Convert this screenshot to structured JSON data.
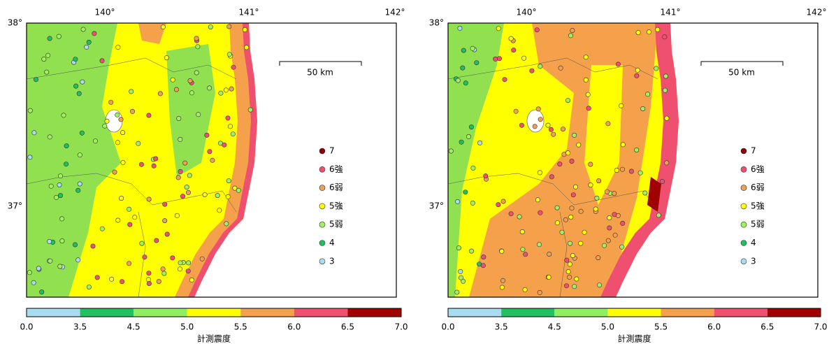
{
  "panels": [
    {
      "lon_labels": [
        "140°",
        "141°",
        "142°"
      ],
      "lat_labels": [
        "38°",
        "37°"
      ],
      "scale_label": "50 km",
      "legend": [
        {
          "label": "7",
          "color": "#8b0000"
        },
        {
          "label": "6強",
          "color": "#f0506e"
        },
        {
          "label": "6弱",
          "color": "#f0a050"
        },
        {
          "label": "5強",
          "color": "#ffff00"
        },
        {
          "label": "5弱",
          "color": "#a0f060"
        },
        {
          "label": "4",
          "color": "#20c060"
        },
        {
          "label": "3",
          "color": "#a8dcf0"
        }
      ],
      "colorbar": {
        "colors": [
          "#a8dcf0",
          "#22c060",
          "#90ee60",
          "#ffff00",
          "#f5a04a",
          "#f05070",
          "#a00000"
        ],
        "ticks": [
          "0.0",
          "3.5",
          "4.5",
          "5.0",
          "5.5",
          "6.0",
          "6.5",
          "7.0"
        ],
        "label": "計測震度"
      }
    },
    {
      "lon_labels": [
        "140°",
        "141°",
        "142°"
      ],
      "lat_labels": [
        "38°",
        "37°"
      ],
      "scale_label": "50 km",
      "legend": [
        {
          "label": "7",
          "color": "#8b0000"
        },
        {
          "label": "6強",
          "color": "#f0506e"
        },
        {
          "label": "6弱",
          "color": "#f0a050"
        },
        {
          "label": "5強",
          "color": "#ffff00"
        },
        {
          "label": "5弱",
          "color": "#a0f060"
        },
        {
          "label": "4",
          "color": "#20c060"
        },
        {
          "label": "3",
          "color": "#a8dcf0"
        }
      ],
      "colorbar": {
        "colors": [
          "#a8dcf0",
          "#22c060",
          "#90ee60",
          "#ffff00",
          "#f5a04a",
          "#f05070",
          "#a00000"
        ],
        "ticks": [
          "0.0",
          "3.5",
          "4.5",
          "5.0",
          "5.5",
          "6.0",
          "6.5",
          "7.0"
        ],
        "label": "計測震度"
      }
    }
  ]
}
